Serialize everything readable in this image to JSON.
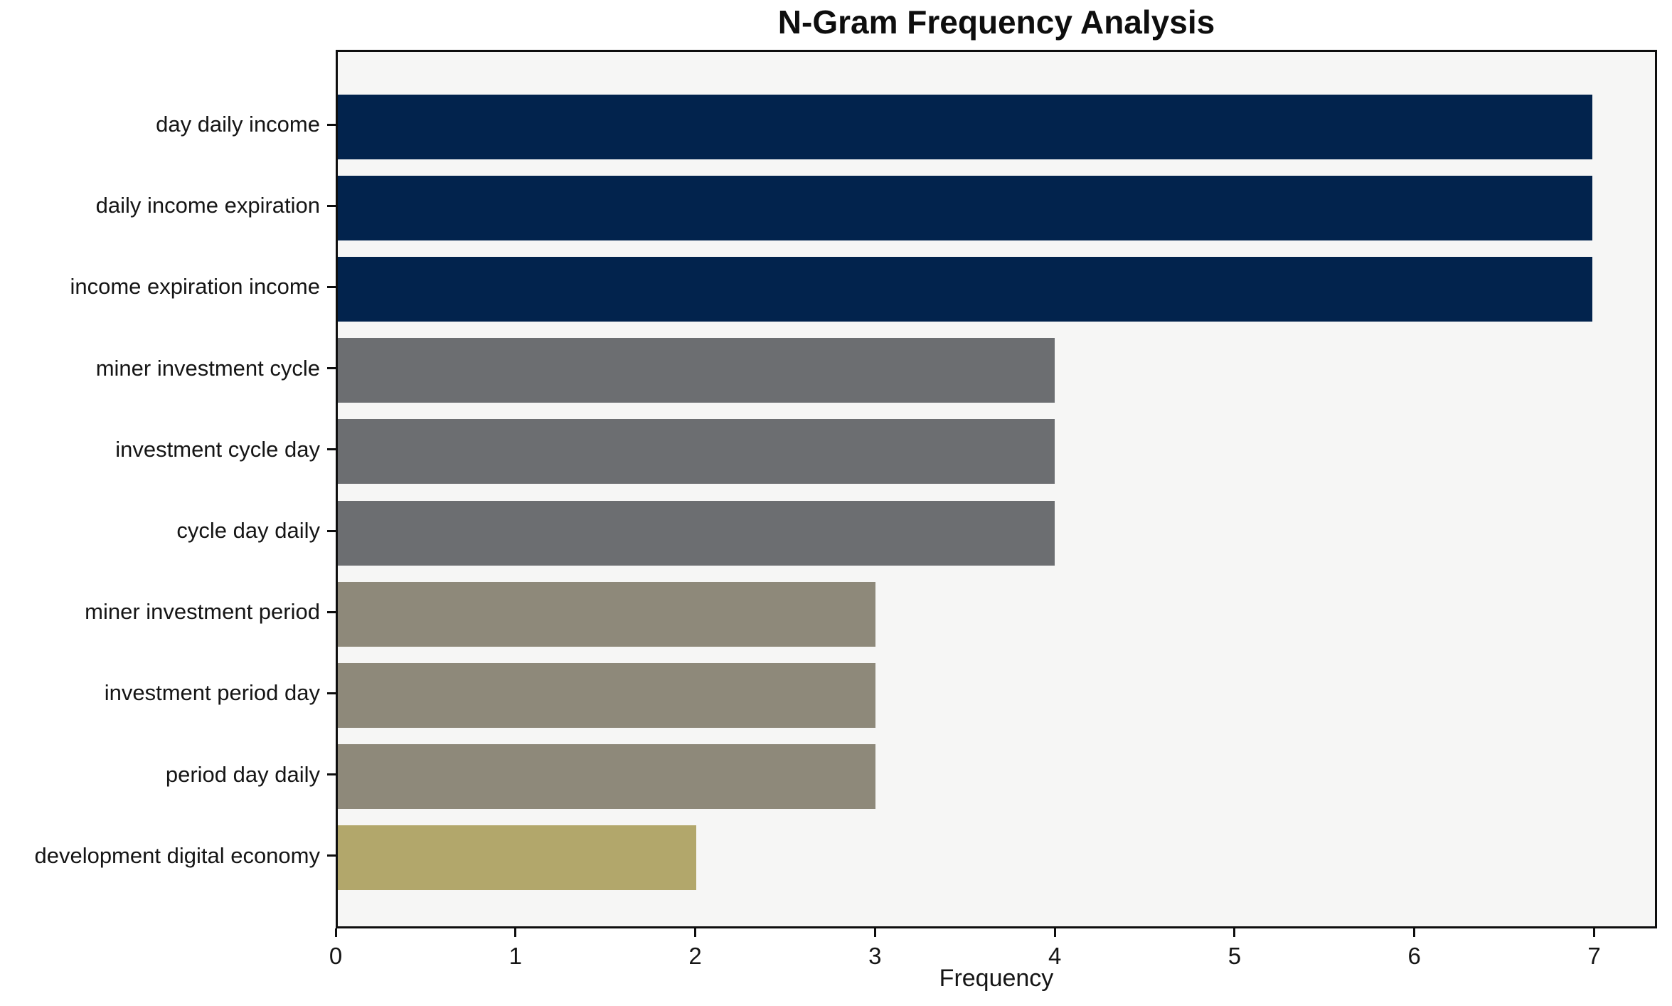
{
  "chart_data": {
    "type": "bar",
    "orientation": "horizontal",
    "title": "N-Gram Frequency Analysis",
    "xlabel": "Frequency",
    "ylabel": "",
    "categories": [
      "day daily income",
      "daily income expiration",
      "income expiration income",
      "miner investment cycle",
      "investment cycle day",
      "cycle day daily",
      "miner investment period",
      "investment period day",
      "period day daily",
      "development digital economy"
    ],
    "values": [
      7,
      7,
      7,
      4,
      4,
      4,
      3,
      3,
      3,
      2
    ],
    "bar_colors": [
      "#02234d",
      "#02234d",
      "#02234d",
      "#6c6e71",
      "#6c6e71",
      "#6c6e71",
      "#8e897a",
      "#8e897a",
      "#8e897a",
      "#b2a76b"
    ],
    "x_ticks": [
      0,
      1,
      2,
      3,
      4,
      5,
      6,
      7
    ],
    "xlim": [
      0,
      7.35
    ],
    "grid": false,
    "legend": null,
    "plot_background": "#f6f6f5",
    "figure_background": "#ffffff",
    "spine_color": "#0e0e0e"
  }
}
